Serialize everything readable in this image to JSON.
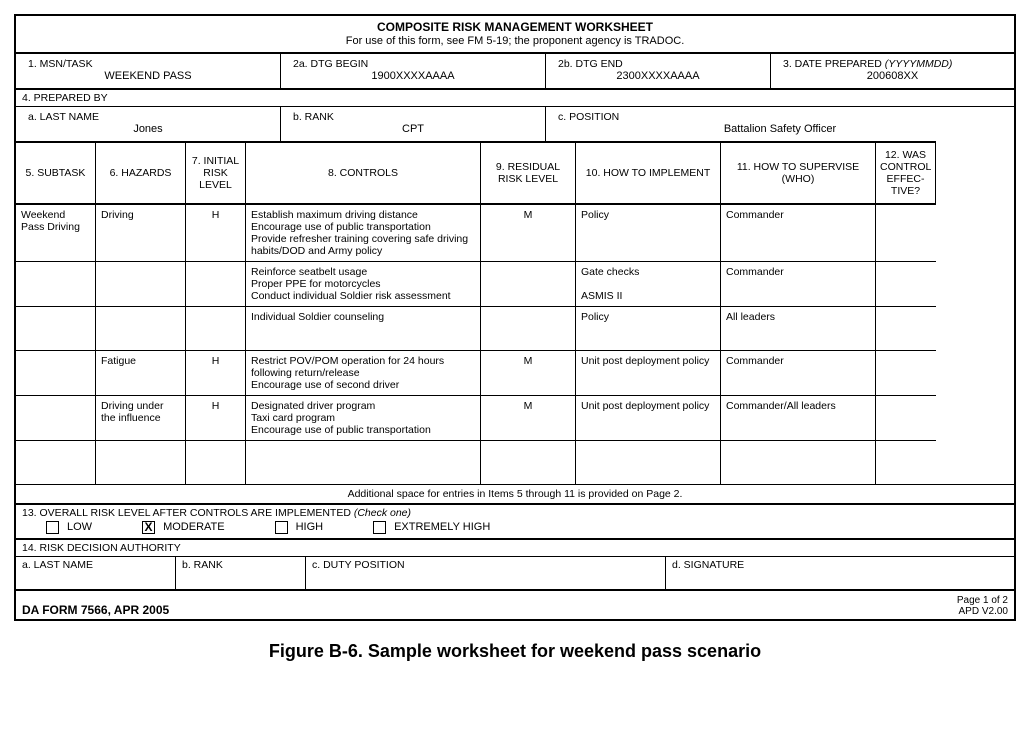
{
  "header": {
    "title": "COMPOSITE RISK MANAGEMENT WORKSHEET",
    "subtitle": "For use of this form, see FM 5-19; the proponent agency is TRADOC."
  },
  "row1": {
    "msn_label": "1. MSN/TASK",
    "msn_value": "WEEKEND PASS",
    "dtg_begin_label": "2a. DTG BEGIN",
    "dtg_begin_value": "1900XXXXAAAA",
    "dtg_end_label": "2b. DTG END",
    "dtg_end_value": "2300XXXXAAAA",
    "date_prep_label": "3. DATE PREPARED ",
    "date_prep_fmt": "(YYYYMMDD)",
    "date_prep_value": "200608XX"
  },
  "prepared_by": {
    "label": "4. PREPARED BY",
    "last_name_label": "a. LAST NAME",
    "last_name_value": "Jones",
    "rank_label": "b. RANK",
    "rank_value": "CPT",
    "position_label": "c. POSITION",
    "position_value": "Battalion Safety Officer"
  },
  "columns": {
    "c5": "5. SUBTASK",
    "c6": "6. HAZARDS",
    "c7": "7. INITIAL RISK LEVEL",
    "c8": "8. CONTROLS",
    "c9": "9. RESIDUAL RISK LEVEL",
    "c10": "10. HOW TO IMPLEMENT",
    "c11": "11. HOW TO SUPERVISE (WHO)",
    "c12": "12. WAS CONTROL EFFEC-TIVE?"
  },
  "rows": [
    {
      "subtask": "Weekend Pass Driving",
      "hazard": "Driving",
      "initial": "H",
      "controls": "Establish maximum driving distance\nEncourage use of public transportation\nProvide refresher training covering safe driving habits/DOD and Army policy",
      "residual": "M",
      "implement": "Policy",
      "supervise": "Commander",
      "effective": ""
    },
    {
      "subtask": "",
      "hazard": "",
      "initial": "",
      "controls": "Reinforce seatbelt usage\nProper PPE for motorcycles\nConduct individual Soldier risk assessment",
      "residual": "",
      "implement": "Gate checks\n\nASMIS II",
      "supervise": "Commander",
      "effective": ""
    },
    {
      "subtask": "",
      "hazard": "",
      "initial": "",
      "controls": "Individual Soldier counseling",
      "residual": "",
      "implement": "Policy",
      "supervise": "All leaders",
      "effective": ""
    },
    {
      "subtask": "",
      "hazard": "Fatigue",
      "initial": "H",
      "controls": "Restrict POV/POM operation for 24 hours following return/release\nEncourage use of second driver",
      "residual": "M",
      "implement": "Unit post deployment policy",
      "supervise": "Commander",
      "effective": ""
    },
    {
      "subtask": "",
      "hazard": "Driving under the influence",
      "initial": "H",
      "controls": "Designated driver program\nTaxi card program\nEncourage use of public transportation",
      "residual": "M",
      "implement": "Unit post deployment policy",
      "supervise": "Commander/All leaders",
      "effective": ""
    },
    {
      "subtask": "",
      "hazard": "",
      "initial": "",
      "controls": "",
      "residual": "",
      "implement": "",
      "supervise": "",
      "effective": ""
    }
  ],
  "additional_space": "Additional space for entries in Items 5 through 11 is provided on Page 2.",
  "overall": {
    "label": "13. OVERALL RISK LEVEL AFTER CONTROLS ARE IMPLEMENTED ",
    "hint": "(Check one)",
    "options": [
      "LOW",
      "MODERATE",
      "HIGH",
      "EXTREMELY HIGH"
    ],
    "checked": "MODERATE"
  },
  "decision": {
    "label": "14. RISK DECISION AUTHORITY",
    "last_name": "a. LAST NAME",
    "rank": "b. RANK",
    "duty": "c. DUTY POSITION",
    "signature": "d. SIGNATURE"
  },
  "footer": {
    "form_id": "DA FORM 7566, APR 2005",
    "page": "Page 1 of 2",
    "apd": "APD V2.00"
  },
  "caption": "Figure B-6. Sample worksheet for weekend pass scenario"
}
